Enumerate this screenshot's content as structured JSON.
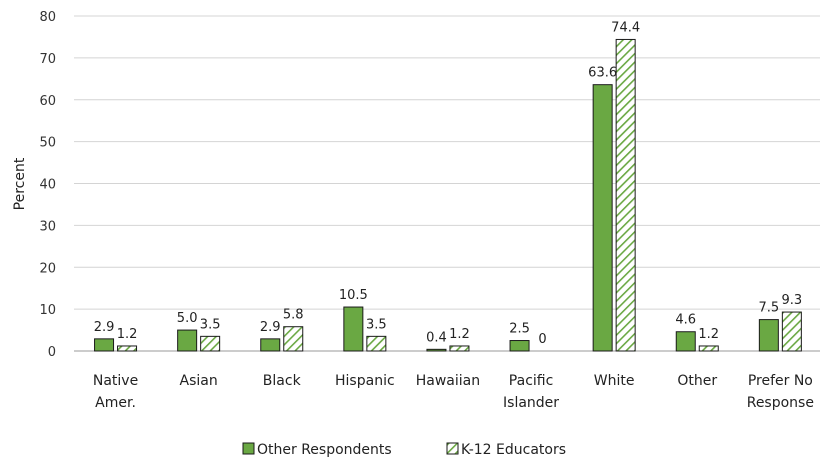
{
  "chart_data": {
    "type": "bar",
    "ylabel": "Percent",
    "ylim": [
      0,
      80
    ],
    "yticks": [
      0,
      10,
      20,
      30,
      40,
      50,
      60,
      70,
      80
    ],
    "grid": true,
    "legend_position": "bottom",
    "categories": [
      [
        "Native",
        "Amer."
      ],
      [
        "Asian"
      ],
      [
        "Black"
      ],
      [
        "Hispanic"
      ],
      [
        "Hawaiian"
      ],
      [
        "Pacific",
        "Islander"
      ],
      [
        "White"
      ],
      [
        "Other"
      ],
      [
        "Prefer No",
        "Response"
      ]
    ],
    "series": [
      {
        "name": "Other Respondents",
        "style": "solid",
        "color": "#6aa843",
        "values": [
          2.9,
          5.0,
          2.9,
          10.5,
          0.4,
          2.5,
          63.6,
          4.6,
          7.5
        ],
        "labels": [
          "2.9",
          "5.0",
          "2.9",
          "10.5",
          "0.4",
          "2.5",
          "63.6",
          "4.6",
          "7.5"
        ]
      },
      {
        "name": "K-12 Educators",
        "style": "hatched",
        "color": "#6aa843",
        "values": [
          1.2,
          3.5,
          5.8,
          3.5,
          1.2,
          0,
          74.4,
          1.2,
          9.3
        ],
        "labels": [
          "1.2",
          "3.5",
          "5.8",
          "3.5",
          "1.2",
          "0",
          "74.4",
          "1.2",
          "9.3"
        ]
      }
    ]
  }
}
